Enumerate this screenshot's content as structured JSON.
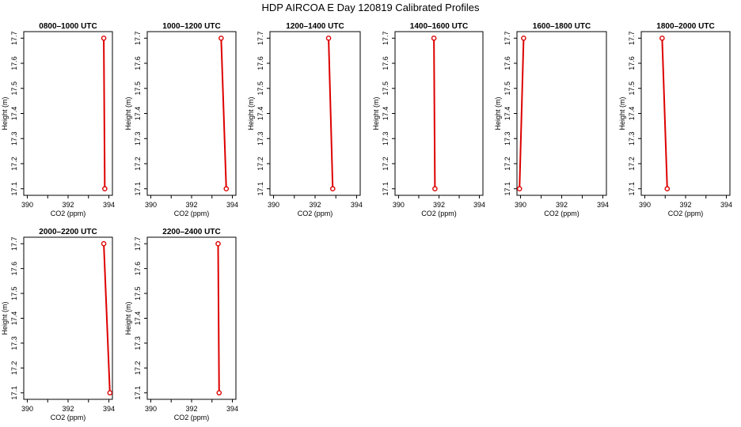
{
  "page_title": "HDP AIRCOA E  Day 120819  Calibrated Profiles",
  "chart_data": [
    {
      "type": "line",
      "title": "0800–1000 UTC",
      "xlabel": "CO2 (ppm)",
      "ylabel": "Height (m)",
      "xlim": [
        390,
        394
      ],
      "ylim": [
        17.1,
        17.7
      ],
      "xticks": [
        "390",
        "392",
        "394"
      ],
      "yticks": [
        "17.1",
        "17.2",
        "17.3",
        "17.4",
        "17.5",
        "17.6",
        "17.7"
      ],
      "series": [
        {
          "points": [
            [
              393.75,
              17.7
            ],
            [
              393.8,
              17.1
            ]
          ]
        }
      ]
    },
    {
      "type": "line",
      "title": "1000–1200 UTC",
      "xlabel": "CO2 (ppm)",
      "ylabel": "Height (m)",
      "xlim": [
        390,
        394
      ],
      "ylim": [
        17.1,
        17.7
      ],
      "xticks": [
        "390",
        "392",
        "394"
      ],
      "yticks": [
        "17.1",
        "17.2",
        "17.3",
        "17.4",
        "17.5",
        "17.6",
        "17.7"
      ],
      "series": [
        {
          "points": [
            [
              393.45,
              17.7
            ],
            [
              393.7,
              17.1
            ]
          ]
        }
      ]
    },
    {
      "type": "line",
      "title": "1200–1400 UTC",
      "xlabel": "CO2 (ppm)",
      "ylabel": "Height (m)",
      "xlim": [
        390,
        394
      ],
      "ylim": [
        17.1,
        17.7
      ],
      "xticks": [
        "390",
        "392",
        "394"
      ],
      "yticks": [
        "17.1",
        "17.2",
        "17.3",
        "17.4",
        "17.5",
        "17.6",
        "17.7"
      ],
      "series": [
        {
          "points": [
            [
              392.65,
              17.7
            ],
            [
              392.85,
              17.1
            ]
          ]
        }
      ]
    },
    {
      "type": "line",
      "title": "1400–1600 UTC",
      "xlabel": "CO2 (ppm)",
      "ylabel": "Height (m)",
      "xlim": [
        390,
        394
      ],
      "ylim": [
        17.1,
        17.7
      ],
      "xticks": [
        "390",
        "392",
        "394"
      ],
      "yticks": [
        "17.1",
        "17.2",
        "17.3",
        "17.4",
        "17.5",
        "17.6",
        "17.7"
      ],
      "series": [
        {
          "points": [
            [
              391.75,
              17.7
            ],
            [
              391.8,
              17.1
            ]
          ]
        }
      ]
    },
    {
      "type": "line",
      "title": "1600–1800 UTC",
      "xlabel": "CO2 (ppm)",
      "ylabel": "Height (m)",
      "xlim": [
        390,
        394
      ],
      "ylim": [
        17.1,
        17.7
      ],
      "xticks": [
        "390",
        "392",
        "394"
      ],
      "yticks": [
        "17.1",
        "17.2",
        "17.3",
        "17.4",
        "17.5",
        "17.6",
        "17.7"
      ],
      "series": [
        {
          "points": [
            [
              390.15,
              17.7
            ],
            [
              389.95,
              17.1
            ]
          ]
        }
      ]
    },
    {
      "type": "line",
      "title": "1800–2000 UTC",
      "xlabel": "CO2 (ppm)",
      "ylabel": "Height (m)",
      "xlim": [
        390,
        394
      ],
      "ylim": [
        17.1,
        17.7
      ],
      "xticks": [
        "390",
        "392",
        "394"
      ],
      "yticks": [
        "17.1",
        "17.2",
        "17.3",
        "17.4",
        "17.5",
        "17.6",
        "17.7"
      ],
      "series": [
        {
          "points": [
            [
              390.85,
              17.7
            ],
            [
              391.1,
              17.1
            ]
          ]
        }
      ]
    },
    {
      "type": "line",
      "title": "2000–2200 UTC",
      "xlabel": "CO2 (ppm)",
      "ylabel": "Height (m)",
      "xlim": [
        390,
        394
      ],
      "ylim": [
        17.1,
        17.7
      ],
      "xticks": [
        "390",
        "392",
        "394"
      ],
      "yticks": [
        "17.1",
        "17.2",
        "17.3",
        "17.4",
        "17.5",
        "17.6",
        "17.7"
      ],
      "series": [
        {
          "points": [
            [
              393.75,
              17.7
            ],
            [
              394.05,
              17.1
            ]
          ]
        }
      ]
    },
    {
      "type": "line",
      "title": "2200–2400 UTC",
      "xlabel": "CO2 (ppm)",
      "ylabel": "Height (m)",
      "xlim": [
        390,
        394
      ],
      "ylim": [
        17.1,
        17.7
      ],
      "xticks": [
        "390",
        "392",
        "394"
      ],
      "yticks": [
        "17.1",
        "17.2",
        "17.3",
        "17.4",
        "17.5",
        "17.6",
        "17.7"
      ],
      "series": [
        {
          "points": [
            [
              393.3,
              17.7
            ],
            [
              393.35,
              17.1
            ]
          ]
        }
      ]
    }
  ],
  "colors": {
    "profile_line": "#dd0000",
    "marker": "#dd0000",
    "axis": "#000000"
  }
}
